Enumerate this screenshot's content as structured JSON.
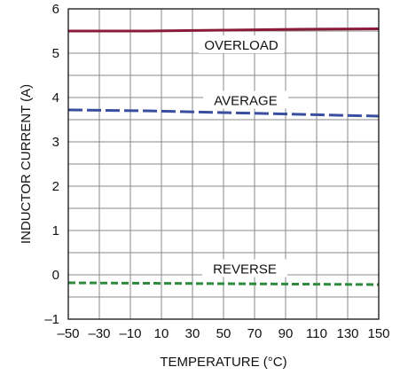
{
  "chart_data": {
    "type": "line",
    "xlabel": "TEMPERATURE (°C)",
    "ylabel": "INDUCTOR CURRENT (A)",
    "xlim": [
      -50,
      150
    ],
    "ylim": [
      -1,
      6
    ],
    "x_ticks": [
      -50,
      -30,
      -10,
      10,
      30,
      50,
      70,
      90,
      110,
      130,
      150
    ],
    "x_tick_labels": [
      "–50",
      "–30",
      "–10",
      "10",
      "30",
      "50",
      "70",
      "90",
      "110",
      "130",
      "150"
    ],
    "y_ticks": [
      -1,
      0,
      1,
      2,
      3,
      4,
      5,
      6
    ],
    "y_tick_labels": [
      "–1",
      "0",
      "1",
      "2",
      "3",
      "4",
      "5",
      "6"
    ],
    "grid": true,
    "series": [
      {
        "name": "OVERLOAD",
        "color": "#8b1a3a",
        "style": "solid",
        "x": [
          -50,
          0,
          50,
          100,
          150
        ],
        "y": [
          5.5,
          5.5,
          5.52,
          5.54,
          5.55
        ]
      },
      {
        "name": "AVERAGE",
        "color": "#3a4ea0",
        "style": "dashed",
        "x": [
          -50,
          0,
          50,
          100,
          150
        ],
        "y": [
          3.72,
          3.7,
          3.66,
          3.62,
          3.58
        ]
      },
      {
        "name": "REVERSE",
        "color": "#2e8b3e",
        "style": "dashed",
        "x": [
          -50,
          0,
          50,
          100,
          150
        ],
        "y": [
          -0.18,
          -0.19,
          -0.2,
          -0.21,
          -0.22
        ]
      }
    ]
  }
}
